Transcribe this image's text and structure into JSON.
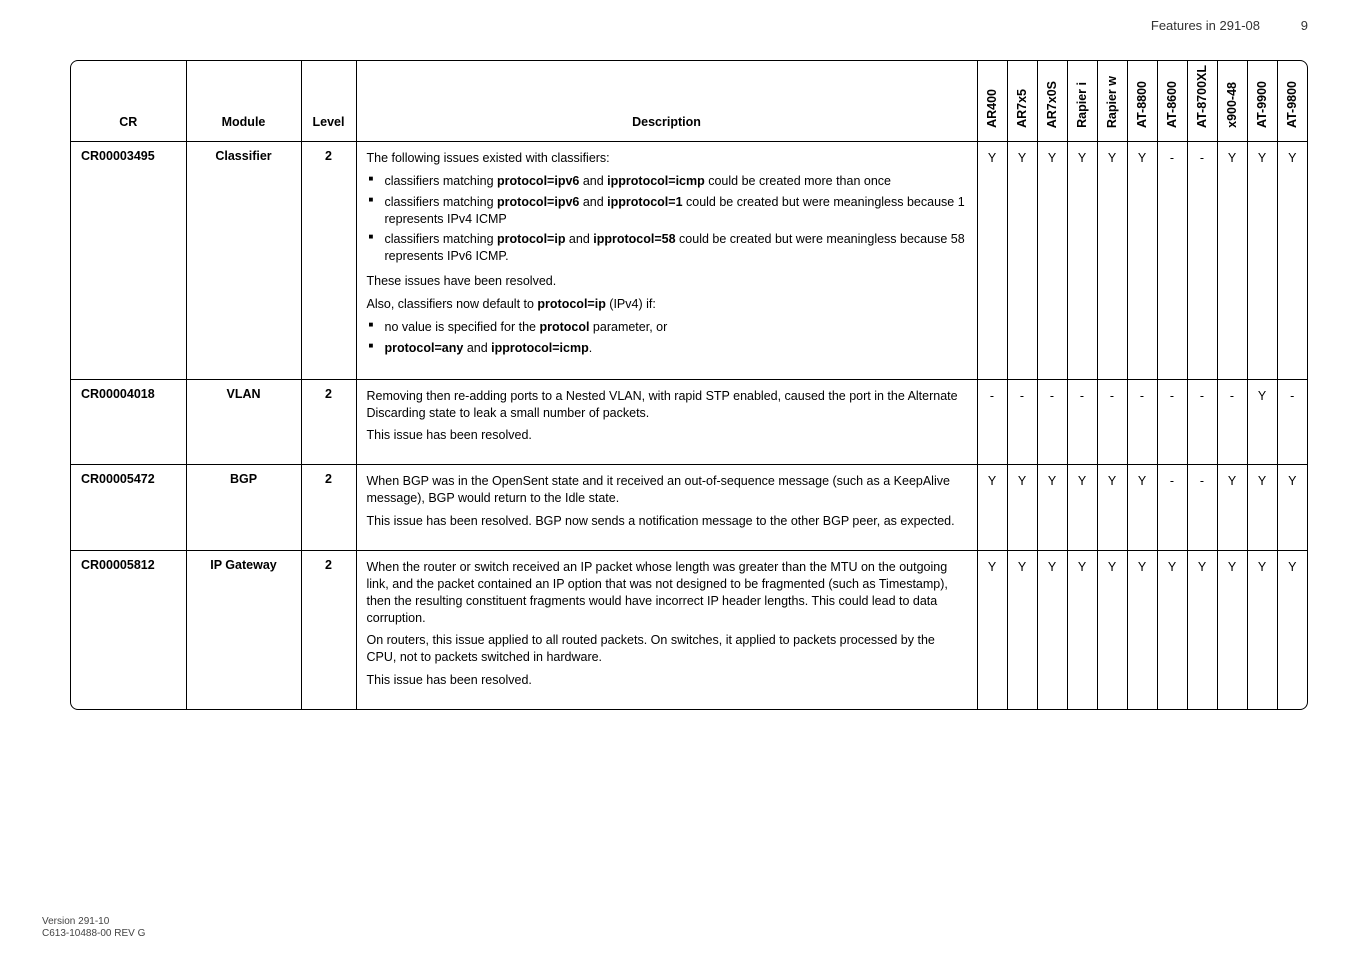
{
  "header": {
    "label": "Features in 291-08",
    "page": "9"
  },
  "footer": {
    "line1": "Version 291-10",
    "line2": "C613-10488-00 REV G"
  },
  "columns": {
    "cr": "CR",
    "module": "Module",
    "level": "Level",
    "description": "Description",
    "flags": [
      "AR400",
      "AR7x5",
      "AR7x0S",
      "Rapier i",
      "Rapier w",
      "AT-8800",
      "AT-8600",
      "AT-8700XL",
      "x900-48",
      "AT-9900",
      "AT-9800"
    ]
  },
  "rows": [
    {
      "cr": "CR00003495",
      "module": "Classifier",
      "level": "2",
      "desc": {
        "p1": "The following issues existed with classifiers:",
        "li1a": "classifiers matching ",
        "li1b": "protocol=ipv6",
        "li1c": " and ",
        "li1d": "ipprotocol=icmp",
        "li1e": " could be created more than once",
        "li2a": "classifiers matching ",
        "li2b": "protocol=ipv6",
        "li2c": " and ",
        "li2d": "ipprotocol=1",
        "li2e": " could be created but were meaningless because 1 represents IPv4 ICMP",
        "li3a": "classifiers matching ",
        "li3b": "protocol=ip",
        "li3c": " and ",
        "li3d": "ipprotocol=58",
        "li3e": " could be created but were meaningless because 58 represents IPv6 ICMP.",
        "p2": "These issues have been resolved.",
        "p3a": "Also, classifiers now default to ",
        "p3b": "protocol=ip",
        "p3c": " (IPv4) if:",
        "li4a": "no value is specified for the ",
        "li4b": "protocol",
        "li4c": " parameter, or",
        "li5a": "protocol=any",
        "li5b": " and ",
        "li5c": "ipprotocol=icmp",
        "li5d": "."
      },
      "flags": [
        "Y",
        "Y",
        "Y",
        "Y",
        "Y",
        "Y",
        "-",
        "-",
        "Y",
        "Y",
        "Y"
      ]
    },
    {
      "cr": "CR00004018",
      "module": "VLAN",
      "level": "2",
      "desc": {
        "p1": "Removing then re-adding ports to a Nested VLAN, with rapid STP enabled, caused the port in the Alternate Discarding state to leak a small number of packets.",
        "p2": "This issue has been resolved."
      },
      "flags": [
        "-",
        "-",
        "-",
        "-",
        "-",
        "-",
        "-",
        "-",
        "-",
        "Y",
        "-"
      ]
    },
    {
      "cr": "CR00005472",
      "module": "BGP",
      "level": "2",
      "desc": {
        "p1": "When BGP was in the OpenSent state and it received an out-of-sequence message (such as a KeepAlive message), BGP would return to the Idle state.",
        "p2": "This issue has been resolved. BGP now sends a notification message to the other BGP peer, as expected."
      },
      "flags": [
        "Y",
        "Y",
        "Y",
        "Y",
        "Y",
        "Y",
        "-",
        "-",
        "Y",
        "Y",
        "Y"
      ]
    },
    {
      "cr": "CR00005812",
      "module": "IP Gateway",
      "level": "2",
      "desc": {
        "p1": "When the router or switch received an IP packet whose length was greater than the MTU on the outgoing link, and the packet contained an IP option that was not designed to be fragmented (such as Timestamp), then the resulting constituent fragments would have incorrect IP header lengths. This could lead to data corruption.",
        "p2": "On routers, this issue applied to all routed packets. On switches, it applied to packets processed by the CPU, not to packets switched in hardware.",
        "p3": "This issue has been resolved."
      },
      "flags": [
        "Y",
        "Y",
        "Y",
        "Y",
        "Y",
        "Y",
        "Y",
        "Y",
        "Y",
        "Y",
        "Y"
      ]
    }
  ]
}
